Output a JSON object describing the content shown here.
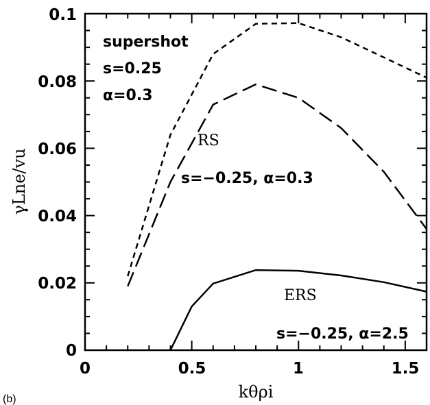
{
  "chart_data": {
    "type": "line",
    "panel_label": "(b)",
    "xlabel": "kθρi",
    "ylabel": "γLne/vu",
    "xlim": [
      0,
      1.6
    ],
    "ylim": [
      0,
      0.1
    ],
    "x_ticks": [
      "0",
      "0.5",
      "1",
      "1.5"
    ],
    "y_ticks": [
      "0",
      "0.02",
      "0.04",
      "0.06",
      "0.08",
      "0.1"
    ],
    "grid": false,
    "series": [
      {
        "style": "short-dash",
        "points": [
          [
            0.2,
            0.022
          ],
          [
            0.4,
            0.064
          ],
          [
            0.6,
            0.088
          ],
          [
            0.8,
            0.097
          ],
          [
            1.0,
            0.0972
          ],
          [
            1.2,
            0.093
          ],
          [
            1.4,
            0.087
          ],
          [
            1.6,
            0.081
          ]
        ]
      },
      {
        "style": "long-dash",
        "points": [
          [
            0.2,
            0.019
          ],
          [
            0.4,
            0.05
          ],
          [
            0.6,
            0.073
          ],
          [
            0.8,
            0.079
          ],
          [
            1.0,
            0.075
          ],
          [
            1.2,
            0.066
          ],
          [
            1.4,
            0.053
          ],
          [
            1.6,
            0.036
          ]
        ]
      },
      {
        "style": "solid",
        "points": [
          [
            0.4,
            0.0
          ],
          [
            0.5,
            0.013
          ],
          [
            0.6,
            0.0198
          ],
          [
            0.8,
            0.0238
          ],
          [
            1.0,
            0.0236
          ],
          [
            1.2,
            0.0222
          ],
          [
            1.4,
            0.0202
          ],
          [
            1.6,
            0.0174
          ]
        ]
      }
    ],
    "annotations": {
      "supershot": [
        "supershot",
        "s=0.25",
        "α=0.3"
      ],
      "rs": [
        "RS",
        "s=−0.25,  α=0.3"
      ],
      "ers": [
        "ERS",
        "s=−0.25,  α=2.5"
      ]
    }
  }
}
